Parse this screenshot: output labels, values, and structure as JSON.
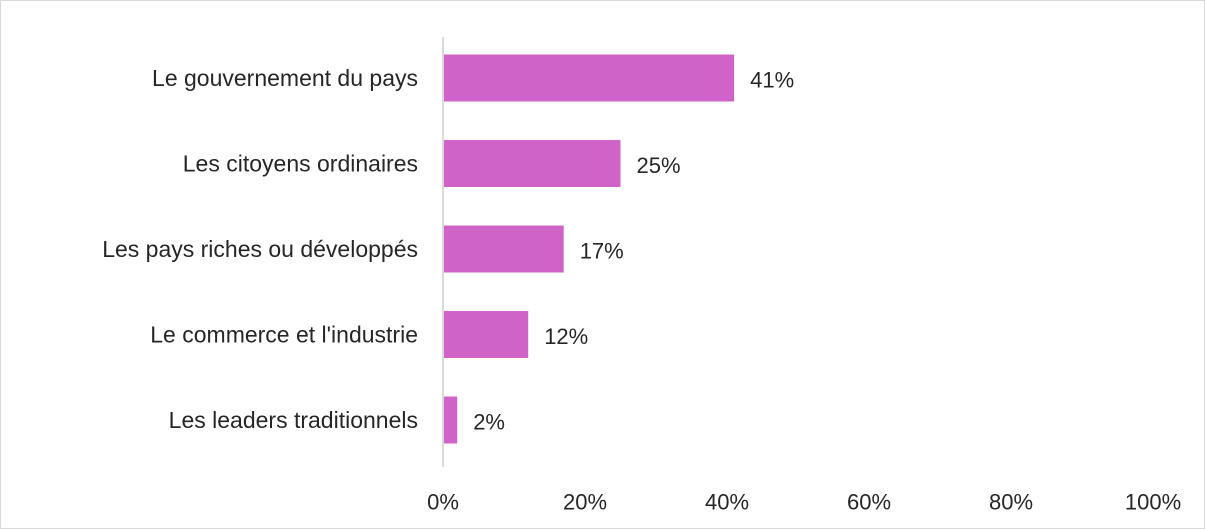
{
  "chart_data": {
    "type": "bar",
    "orientation": "horizontal",
    "categories": [
      "Le gouvernement du pays",
      "Les citoyens ordinaires",
      "Les pays riches ou développés",
      "Le commerce et l'industrie",
      "Les leaders traditionnels"
    ],
    "values": [
      41,
      25,
      17,
      12,
      2
    ],
    "value_labels": [
      "41%",
      "25%",
      "17%",
      "12%",
      "2%"
    ],
    "xlim": [
      0,
      100
    ],
    "x_ticks": [
      0,
      20,
      40,
      60,
      80,
      100
    ],
    "x_tick_labels": [
      "0%",
      "20%",
      "40%",
      "60%",
      "80%",
      "100%"
    ],
    "title": "",
    "xlabel": "",
    "ylabel": "",
    "grid": false,
    "bar_color": "#d063c7",
    "axis_color": "#d9d9d9",
    "text_color": "#262626"
  }
}
